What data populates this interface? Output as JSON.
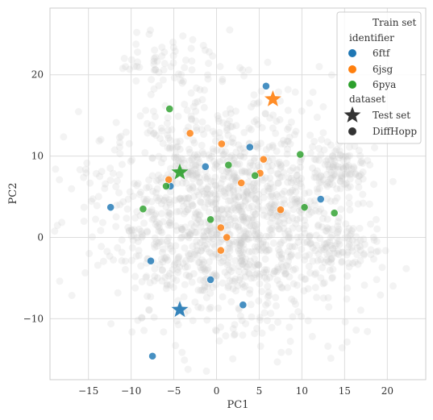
{
  "chart_data": {
    "type": "scatter",
    "xlabel": "PC1",
    "ylabel": "PC2",
    "xlim": [
      -19.5,
      24.5
    ],
    "ylim": [
      -17.5,
      28.2
    ],
    "xticks": [
      -15,
      -10,
      -5,
      0,
      5,
      10,
      15,
      20
    ],
    "yticks": [
      -10,
      0,
      10,
      20
    ],
    "xtick_labels": [
      "−15",
      "−10",
      "−5",
      "0",
      "5",
      "10",
      "15",
      "20"
    ],
    "ytick_labels": [
      "−10",
      "0",
      "10",
      "20"
    ],
    "grid": true,
    "legend_position": "top-right",
    "legend": {
      "background_label": "Train set",
      "hue_title": "identifier",
      "style_title": "dataset",
      "hue_entries": [
        {
          "label": "6ftf",
          "color": "#1f77b4"
        },
        {
          "label": "6jsg",
          "color": "#ff7f0e"
        },
        {
          "label": "6pya",
          "color": "#2ca02c"
        }
      ],
      "style_entries": [
        {
          "label": "Test set",
          "marker": "star"
        },
        {
          "label": "DiffHopp",
          "marker": "circle"
        }
      ]
    },
    "series": [
      {
        "name": "6ftf",
        "color": "#1f77b4",
        "test_set": [
          {
            "x": -4.3,
            "y": -8.9
          }
        ],
        "diffhopp": [
          {
            "x": 5.8,
            "y": 18.6
          },
          {
            "x": 3.9,
            "y": 11.1
          },
          {
            "x": -1.3,
            "y": 8.7
          },
          {
            "x": -5.4,
            "y": 6.3
          },
          {
            "x": -12.4,
            "y": 3.7
          },
          {
            "x": 12.2,
            "y": 4.7
          },
          {
            "x": -7.7,
            "y": -2.9
          },
          {
            "x": -0.7,
            "y": -5.2
          },
          {
            "x": 3.1,
            "y": -8.3
          },
          {
            "x": -7.5,
            "y": -14.6
          }
        ]
      },
      {
        "name": "6jsg",
        "color": "#ff7f0e",
        "test_set": [
          {
            "x": 6.6,
            "y": 17.0
          }
        ],
        "diffhopp": [
          {
            "x": -3.1,
            "y": 12.8
          },
          {
            "x": 0.6,
            "y": 11.5
          },
          {
            "x": 5.5,
            "y": 9.6
          },
          {
            "x": 5.1,
            "y": 7.9
          },
          {
            "x": 2.9,
            "y": 6.7
          },
          {
            "x": -5.6,
            "y": 7.1
          },
          {
            "x": 7.5,
            "y": 3.4
          },
          {
            "x": 0.5,
            "y": 1.2
          },
          {
            "x": 1.2,
            "y": 0.0
          },
          {
            "x": 0.5,
            "y": -1.6
          }
        ]
      },
      {
        "name": "6pya",
        "color": "#2ca02c",
        "test_set": [
          {
            "x": -4.3,
            "y": 8.0
          }
        ],
        "diffhopp": [
          {
            "x": -5.5,
            "y": 15.8
          },
          {
            "x": 9.8,
            "y": 10.2
          },
          {
            "x": 1.4,
            "y": 8.9
          },
          {
            "x": 4.5,
            "y": 7.6
          },
          {
            "x": -5.9,
            "y": 6.3
          },
          {
            "x": -8.6,
            "y": 3.5
          },
          {
            "x": -0.7,
            "y": 2.2
          },
          {
            "x": 10.3,
            "y": 3.7
          },
          {
            "x": 13.8,
            "y": 3.0
          }
        ]
      }
    ],
    "train_set": {
      "color": "#c8c8c8",
      "center": [
        1.5,
        3.0
      ],
      "spread": [
        7.5,
        7.0
      ],
      "count": 1400,
      "clusters": [
        {
          "center": [
            15.0,
            8.5
          ],
          "spread": [
            1.4,
            1.4
          ],
          "count": 90
        },
        {
          "center": [
            15.0,
            -1.5
          ],
          "spread": [
            2.2,
            1.8
          ],
          "count": 80
        },
        {
          "center": [
            -6.5,
            22.0
          ],
          "spread": [
            2.5,
            1.8
          ],
          "count": 50
        }
      ]
    }
  }
}
